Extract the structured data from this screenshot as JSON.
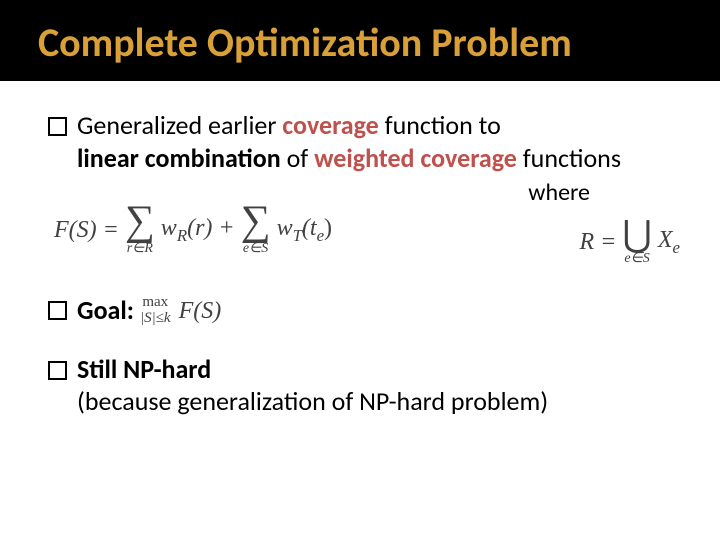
{
  "colors": {
    "background": "#ffffff",
    "title_bg": "#000000",
    "title_text": "#d9a038",
    "body_text": "#000000",
    "accent_orange": "#c0504d",
    "formula_text": "#414141"
  },
  "title": "Complete Optimization Problem",
  "bullet1": {
    "t1": "Generalized earlier ",
    "t2": "coverage",
    "t3": " function to ",
    "t4": "linear combination",
    "t5": " of ",
    "t6": "weighted coverage",
    "t7": " functions"
  },
  "where_label": "where",
  "formula_main": {
    "lhs": "F(S) =",
    "sum1_sub": "r∈R",
    "term1": "w",
    "term1_sub": "R",
    "term1_arg": "(r) +",
    "sum2_sub": "e∈S",
    "term2": "w",
    "term2_sub": "T",
    "term2_arg": "(t",
    "term2_arg_sub": "e",
    "term2_arg_close": ")"
  },
  "formula_side": {
    "lhs": "R =",
    "union_sub": "e∈S",
    "rhs": "X",
    "rhs_sub": "e"
  },
  "bullet2": {
    "label": "Goal:",
    "max_top": "max",
    "max_bot": "|S|≤k",
    "fs": "F(S)"
  },
  "bullet3": {
    "t1": "Still ",
    "t2": "NP-hard",
    "t3": "(because generalization of NP-hard problem)"
  }
}
